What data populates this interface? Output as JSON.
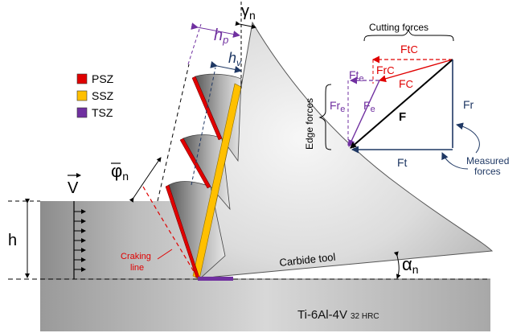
{
  "legend": [
    {
      "label": "PSZ",
      "color": "#e00000"
    },
    {
      "label": "SSZ",
      "color": "#ffc000"
    },
    {
      "label": "TSZ",
      "color": "#7030a0"
    }
  ],
  "symbols": {
    "velocity": "V",
    "phi": "φ",
    "phi_sub": "n",
    "gamma": "γ",
    "gamma_sub": "n",
    "alpha": "α",
    "alpha_sub": "n",
    "hp": "h",
    "hp_sub": "p",
    "hv": "h",
    "hv_sub": "v",
    "h": "h"
  },
  "labels": {
    "cracking_line_1": "Craking",
    "cracking_line_2": "line",
    "tool": "Carbide tool",
    "material": "Ti-6Al-4V",
    "material_hardness": "32 HRC"
  },
  "force_diagram": {
    "cutting_forces": "Cutting forces",
    "edge_forces": "Edge forces",
    "measured_1": "Measured",
    "measured_2": "forces",
    "ftc_main": "Ft",
    "ftc_sub": "C",
    "frc_main": "Fr",
    "frc_sub": "C",
    "fc_main": "F",
    "fc_sub": "C",
    "fte_main": "Ft",
    "fte_sub": "e",
    "fre_main": "Fr",
    "fre_sub": "e",
    "fe_main": "F",
    "fe_sub": "e",
    "f": "F",
    "fr": "Fr",
    "ft": "Ft"
  },
  "colors": {
    "psz": "#e00000",
    "ssz": "#ffc000",
    "tsz": "#7030a0",
    "cutting": "#e00000",
    "edge": "#7030a0",
    "measured": "#1f3864",
    "hv_dim": "#1f3864"
  }
}
